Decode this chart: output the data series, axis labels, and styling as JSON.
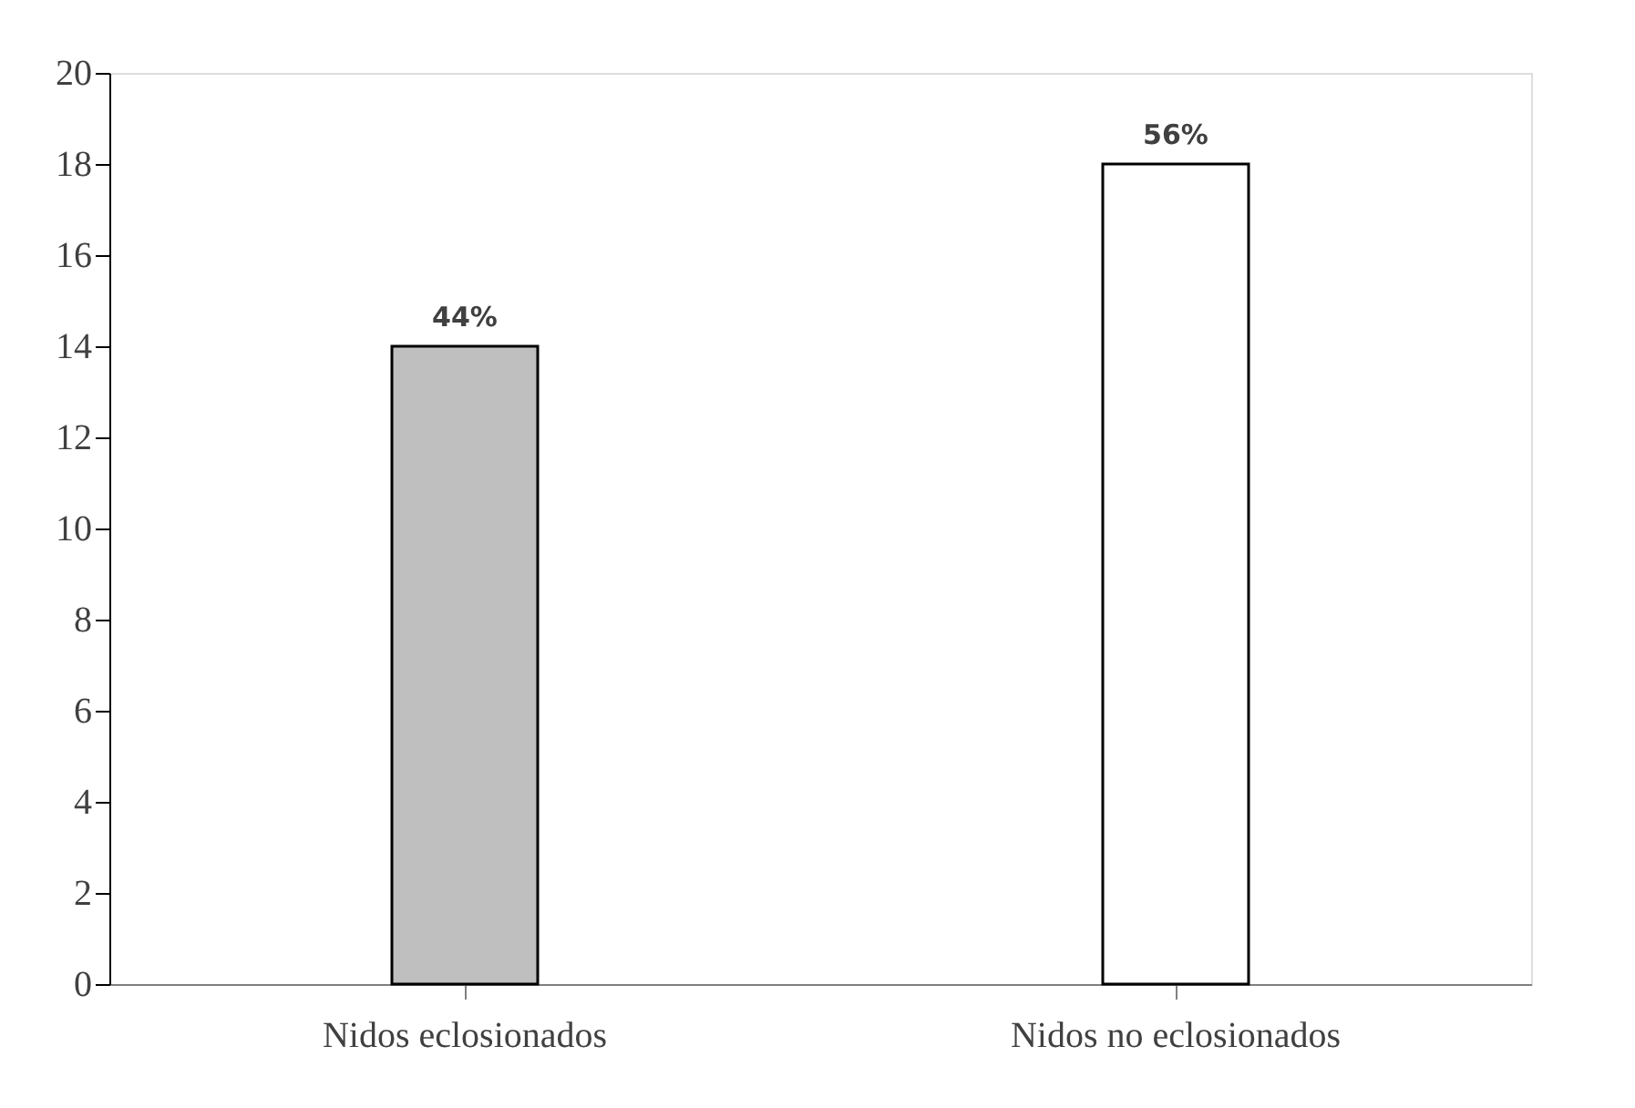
{
  "chart_data": {
    "type": "bar",
    "categories": [
      "Nidos eclosionados",
      "Nidos no eclosionados"
    ],
    "values": [
      14,
      18
    ],
    "colors": [
      "#bfbfbf",
      "#ffffff"
    ],
    "annotations": [
      {
        "text": "44%",
        "x": "Nidos eclosionados",
        "y": 14
      },
      {
        "text": "56%",
        "x": "Nidos no eclosionados",
        "y": 18
      }
    ],
    "ylim": [
      0,
      20
    ],
    "yticks": [
      0,
      2,
      4,
      6,
      8,
      10,
      12,
      14,
      16,
      18,
      20
    ],
    "grid": false,
    "legend": false
  }
}
